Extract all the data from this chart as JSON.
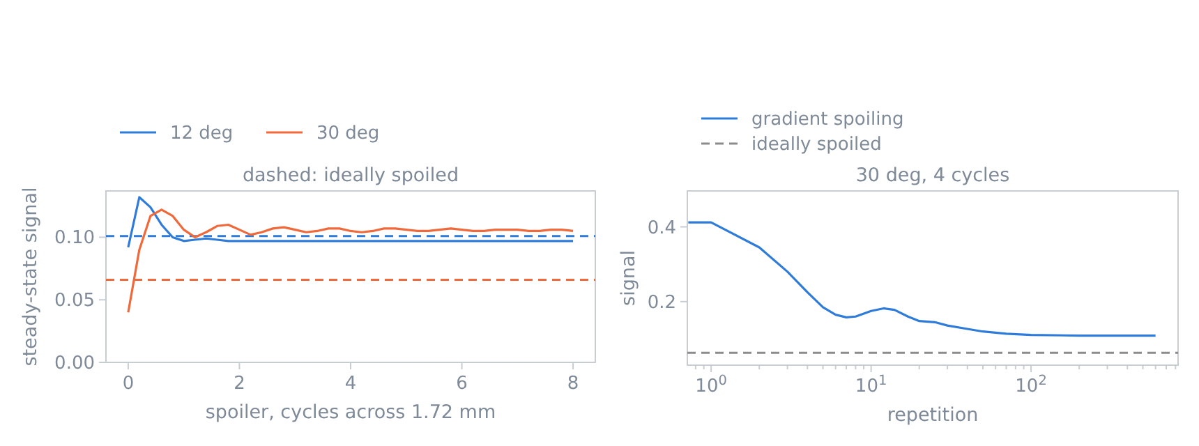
{
  "chart_data": [
    {
      "type": "line",
      "title": "dashed: ideally spoiled",
      "xlabel": "spoiler, cycles across 1.72 mm",
      "ylabel": "steady-state signal",
      "xlim": [
        -0.4,
        8.4
      ],
      "ylim": [
        0,
        0.137
      ],
      "xticks": [
        0,
        2,
        4,
        6,
        8
      ],
      "yticks": [
        {
          "value": 0,
          "label": "0.00"
        },
        {
          "value": 0.05,
          "label": "0.05"
        },
        {
          "value": 0.1,
          "label": "0.10"
        }
      ],
      "grid": false,
      "legend": "top",
      "line_style": "solid",
      "x": [
        0,
        0.2,
        0.4,
        0.6,
        0.8,
        1,
        1.2,
        1.4,
        1.6,
        1.8,
        2,
        2.2,
        2.4,
        2.6,
        2.8,
        3,
        3.2,
        3.4,
        3.6,
        3.8,
        4,
        4.2,
        4.4,
        4.6,
        4.8,
        5,
        5.2,
        5.4,
        5.6,
        5.8,
        6,
        6.2,
        6.4,
        6.6,
        6.8,
        7,
        7.2,
        7.4,
        7.6,
        7.8,
        8
      ],
      "series": [
        {
          "name": "12 deg",
          "color": "#2f7bd9",
          "values": [
            0.092,
            0.132,
            0.124,
            0.11,
            0.1,
            0.097,
            0.098,
            0.099,
            0.098,
            0.097,
            0.097,
            0.097,
            0.097,
            0.097,
            0.097,
            0.097,
            0.097,
            0.097,
            0.097,
            0.097,
            0.097,
            0.097,
            0.097,
            0.097,
            0.097,
            0.097,
            0.097,
            0.097,
            0.097,
            0.097,
            0.097,
            0.097,
            0.097,
            0.097,
            0.097,
            0.097,
            0.097,
            0.097,
            0.097,
            0.097,
            0.097
          ]
        },
        {
          "name": "30 deg",
          "color": "#f0693a",
          "values": [
            0.04,
            0.09,
            0.117,
            0.122,
            0.117,
            0.106,
            0.1,
            0.104,
            0.109,
            0.11,
            0.106,
            0.102,
            0.104,
            0.107,
            0.108,
            0.106,
            0.104,
            0.105,
            0.107,
            0.107,
            0.105,
            0.104,
            0.105,
            0.107,
            0.107,
            0.106,
            0.105,
            0.105,
            0.106,
            0.107,
            0.106,
            0.105,
            0.105,
            0.106,
            0.106,
            0.106,
            0.105,
            0.105,
            0.106,
            0.106,
            0.105
          ]
        }
      ],
      "ref_lines": [
        {
          "axis": "y",
          "value": 0.101,
          "color": "#2f7bd9",
          "line_style": "dashed"
        },
        {
          "axis": "y",
          "value": 0.066,
          "color": "#f0693a",
          "line_style": "dashed"
        }
      ]
    },
    {
      "type": "line",
      "title": "30 deg, 4 cycles",
      "xlabel": "repetition",
      "ylabel": "signal",
      "log": "x",
      "xlim": [
        0.71,
        830
      ],
      "ylim": [
        0.03,
        0.496
      ],
      "xticks": [
        {
          "value": 0.8,
          "label": null
        },
        {
          "value": 0.9,
          "label": null
        },
        {
          "value": 1,
          "label": "10$^{0}$"
        },
        {
          "value": 2,
          "label": null
        },
        {
          "value": 3,
          "label": null
        },
        {
          "value": 4,
          "label": null
        },
        {
          "value": 5,
          "label": null
        },
        {
          "value": 6,
          "label": null
        },
        {
          "value": 7,
          "label": null
        },
        {
          "value": 8,
          "label": null
        },
        {
          "value": 9,
          "label": null
        },
        {
          "value": 10,
          "label": "10$^{1}$"
        },
        {
          "value": 20,
          "label": null
        },
        {
          "value": 30,
          "label": null
        },
        {
          "value": 40,
          "label": null
        },
        {
          "value": 50,
          "label": null
        },
        {
          "value": 60,
          "label": null
        },
        {
          "value": 70,
          "label": null
        },
        {
          "value": 80,
          "label": null
        },
        {
          "value": 90,
          "label": null
        },
        {
          "value": 100,
          "label": "10$^{2}$"
        },
        {
          "value": 200,
          "label": null
        },
        {
          "value": 300,
          "label": null
        },
        {
          "value": 400,
          "label": null
        },
        {
          "value": 500,
          "label": null
        },
        {
          "value": 600,
          "label": null
        },
        {
          "value": 700,
          "label": null
        },
        {
          "value": 800,
          "label": null
        }
      ],
      "yticks": [
        0.2,
        0.4
      ],
      "grid": false,
      "legend": "top left",
      "line_style": "solid",
      "x": [
        0.72,
        1,
        2,
        3,
        4,
        5,
        6,
        7,
        8,
        10,
        12,
        14,
        17,
        20,
        25,
        30,
        40,
        50,
        70,
        100,
        200,
        600
      ],
      "series": [
        {
          "name": "gradient spoiling",
          "color": "#2f7bd9",
          "values": [
            0.412,
            0.412,
            0.345,
            0.28,
            0.225,
            0.185,
            0.165,
            0.158,
            0.16,
            0.175,
            0.182,
            0.178,
            0.16,
            0.148,
            0.145,
            0.136,
            0.127,
            0.12,
            0.114,
            0.111,
            0.109,
            0.109
          ]
        }
      ],
      "ref_lines": [
        {
          "axis": "y",
          "value": 0.063,
          "label": "ideally spoiled",
          "color": "#8c8c8c",
          "line_style": "dashed"
        }
      ]
    }
  ]
}
